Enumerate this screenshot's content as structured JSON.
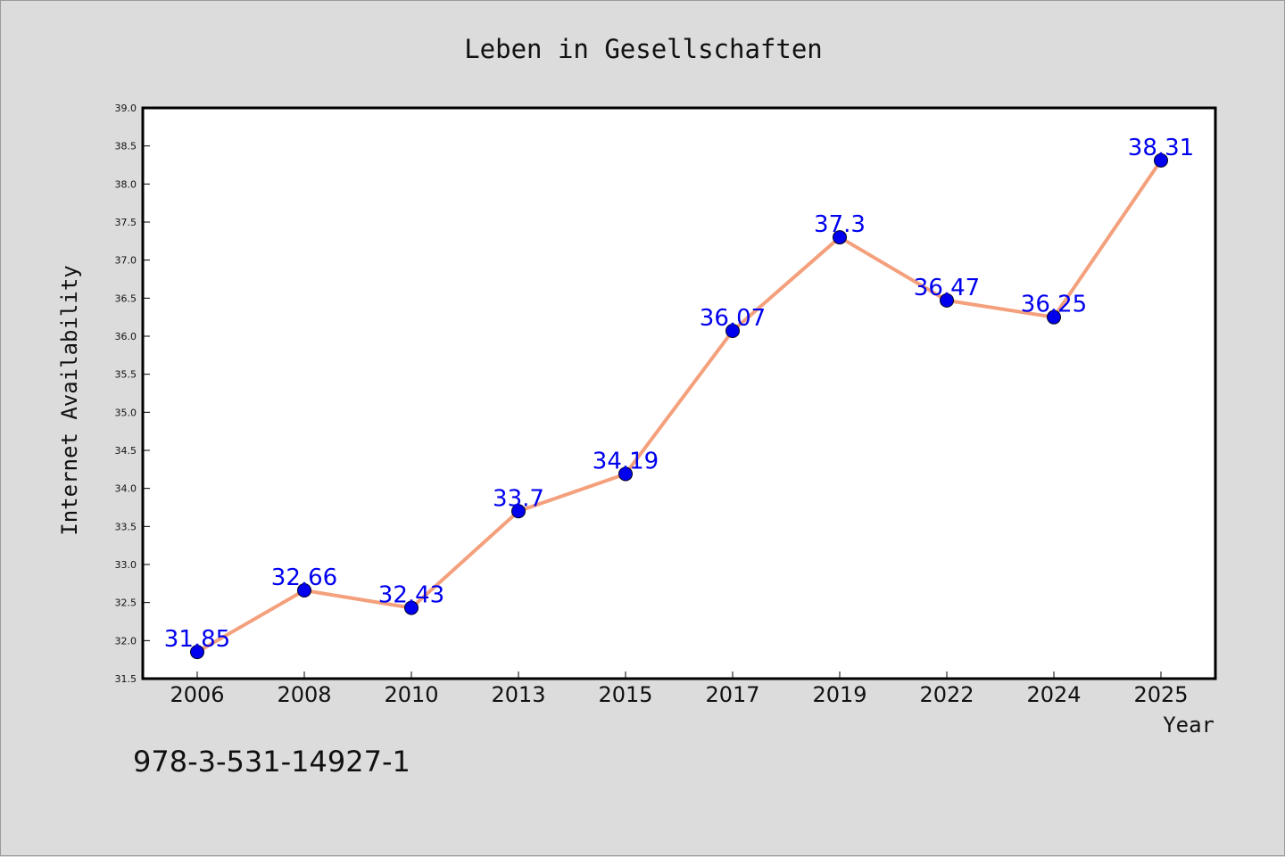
{
  "chart_data": {
    "type": "line",
    "title": "Leben in Gesellschaften",
    "xlabel": "Year",
    "ylabel": "Internet Availability",
    "categories": [
      "2006",
      "2008",
      "2010",
      "2013",
      "2015",
      "2017",
      "2019",
      "2022",
      "2024",
      "2025"
    ],
    "values": [
      31.85,
      32.66,
      32.43,
      33.7,
      34.19,
      36.07,
      37.3,
      36.47,
      36.25,
      38.31
    ],
    "data_labels": [
      "31.85",
      "32.66",
      "32.43",
      "33.7",
      "34.19",
      "36.07",
      "37.3",
      "36.47",
      "36.25",
      "38.31"
    ],
    "ylim": [
      31.5,
      39.0
    ],
    "yticks": [
      "31.5",
      "32.0",
      "32.5",
      "33.0",
      "33.5",
      "34.0",
      "34.5",
      "35.0",
      "35.5",
      "36.0",
      "36.5",
      "37.0",
      "37.5",
      "38.0",
      "38.5",
      "39.0"
    ],
    "grid": false,
    "legend": "none",
    "colors": {
      "line": "#f4a07c",
      "marker": "#0000ee",
      "label": "#0000ee",
      "background": "#dcdcdc",
      "plot_background": "#ffffff"
    }
  },
  "footer": {
    "isbn": "978-3-531-14927-1"
  }
}
